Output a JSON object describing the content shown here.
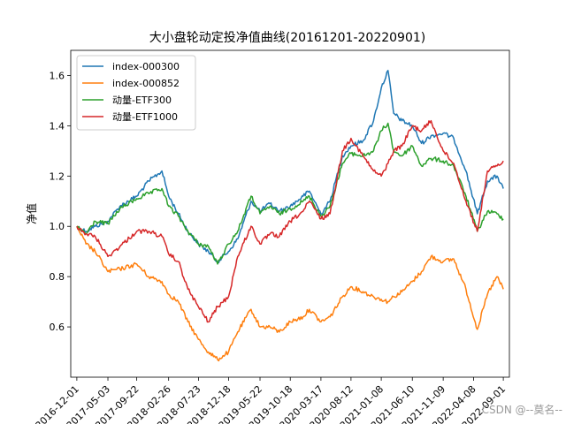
{
  "chart_data": {
    "type": "line",
    "title": "大小盘轮动定投净值曲线(20161201-20220901)",
    "xlabel": "",
    "ylabel": "净值",
    "xlim": [
      "2016-11-01",
      "2022-10-01"
    ],
    "ylim": [
      0.4,
      1.7
    ],
    "yticks": [
      0.6,
      0.8,
      1.0,
      1.2,
      1.4,
      1.6
    ],
    "ytick_labels": [
      "0.6",
      "0.8",
      "1.0",
      "1.2",
      "1.4",
      "1.6"
    ],
    "xticks": [
      "2016-12-01",
      "2017-05-03",
      "2017-09-22",
      "2018-02-26",
      "2018-07-23",
      "2018-12-18",
      "2019-05-22",
      "2019-10-18",
      "2020-03-17",
      "2020-08-12",
      "2021-01-08",
      "2021-06-10",
      "2021-11-09",
      "2022-04-08",
      "2022-09-01"
    ],
    "xtick_labels": [
      "2016-12-01",
      "2017-05-03",
      "2017-09-22",
      "2018-02-26",
      "2018-07-23",
      "2018-12-18",
      "2019-05-22",
      "2019-10-18",
      "2020-03-17",
      "2020-08-12",
      "2021-01-08",
      "2021-06-10",
      "2021-11-09",
      "2022-04-08",
      "2022-09-01"
    ],
    "grid": false,
    "legend_position": "top-left",
    "series": [
      {
        "name": "index-000300",
        "color": "#1f77b4",
        "x": [
          "2016-12-01",
          "2017-01-15",
          "2017-03-01",
          "2017-05-03",
          "2017-07-01",
          "2017-09-22",
          "2017-11-20",
          "2018-01-24",
          "2018-02-26",
          "2018-04-15",
          "2018-06-01",
          "2018-07-23",
          "2018-09-10",
          "2018-10-25",
          "2018-12-18",
          "2019-02-01",
          "2019-04-08",
          "2019-05-22",
          "2019-07-10",
          "2019-08-25",
          "2019-10-18",
          "2019-12-20",
          "2020-01-20",
          "2020-03-17",
          "2020-05-01",
          "2020-07-01",
          "2020-08-12",
          "2020-10-10",
          "2020-12-01",
          "2021-01-08",
          "2021-02-10",
          "2021-03-10",
          "2021-04-20",
          "2021-06-10",
          "2021-07-25",
          "2021-09-10",
          "2021-11-09",
          "2021-12-31",
          "2022-03-01",
          "2022-04-26",
          "2022-06-15",
          "2022-08-01",
          "2022-09-01"
        ],
        "values": [
          1.0,
          0.98,
          1.0,
          1.02,
          1.08,
          1.12,
          1.18,
          1.22,
          1.12,
          1.05,
          0.98,
          0.93,
          0.9,
          0.86,
          0.9,
          0.95,
          1.1,
          1.06,
          1.09,
          1.06,
          1.08,
          1.12,
          1.14,
          1.05,
          1.1,
          1.28,
          1.32,
          1.34,
          1.42,
          1.55,
          1.62,
          1.45,
          1.42,
          1.4,
          1.33,
          1.36,
          1.37,
          1.35,
          1.22,
          1.05,
          1.18,
          1.2,
          1.15
        ]
      },
      {
        "name": "index-000852",
        "color": "#ff7f0e",
        "x": [
          "2016-12-01",
          "2017-01-15",
          "2017-03-01",
          "2017-05-03",
          "2017-07-01",
          "2017-09-22",
          "2017-11-20",
          "2018-01-24",
          "2018-02-26",
          "2018-04-15",
          "2018-06-01",
          "2018-07-23",
          "2018-09-10",
          "2018-10-25",
          "2018-12-18",
          "2019-02-01",
          "2019-04-08",
          "2019-05-22",
          "2019-07-10",
          "2019-08-25",
          "2019-10-18",
          "2019-12-20",
          "2020-01-20",
          "2020-03-17",
          "2020-05-01",
          "2020-07-01",
          "2020-08-12",
          "2020-10-10",
          "2020-12-01",
          "2021-01-08",
          "2021-02-10",
          "2021-03-10",
          "2021-04-20",
          "2021-06-10",
          "2021-07-25",
          "2021-09-10",
          "2021-11-09",
          "2021-12-31",
          "2022-03-01",
          "2022-04-26",
          "2022-06-15",
          "2022-08-01",
          "2022-09-01"
        ],
        "values": [
          1.0,
          0.93,
          0.9,
          0.82,
          0.83,
          0.85,
          0.8,
          0.78,
          0.73,
          0.7,
          0.62,
          0.55,
          0.5,
          0.47,
          0.5,
          0.58,
          0.67,
          0.6,
          0.6,
          0.58,
          0.62,
          0.64,
          0.67,
          0.62,
          0.64,
          0.72,
          0.76,
          0.74,
          0.72,
          0.71,
          0.7,
          0.72,
          0.74,
          0.78,
          0.82,
          0.88,
          0.86,
          0.87,
          0.75,
          0.59,
          0.73,
          0.8,
          0.75
        ]
      },
      {
        "name": "动量-ETF300",
        "color": "#2ca02c",
        "x": [
          "2016-12-01",
          "2017-01-15",
          "2017-03-01",
          "2017-05-03",
          "2017-07-01",
          "2017-09-22",
          "2017-11-20",
          "2018-01-24",
          "2018-02-26",
          "2018-04-15",
          "2018-06-01",
          "2018-07-23",
          "2018-09-10",
          "2018-10-25",
          "2018-12-18",
          "2019-02-01",
          "2019-04-08",
          "2019-05-22",
          "2019-07-10",
          "2019-08-25",
          "2019-10-18",
          "2019-12-20",
          "2020-01-20",
          "2020-03-17",
          "2020-05-01",
          "2020-07-01",
          "2020-08-12",
          "2020-10-10",
          "2020-12-01",
          "2021-01-08",
          "2021-02-10",
          "2021-03-10",
          "2021-04-20",
          "2021-06-10",
          "2021-07-25",
          "2021-09-10",
          "2021-11-09",
          "2021-12-31",
          "2022-03-01",
          "2022-04-26",
          "2022-06-15",
          "2022-08-01",
          "2022-09-01"
        ],
        "values": [
          1.0,
          0.97,
          1.02,
          1.01,
          1.07,
          1.11,
          1.13,
          1.15,
          1.08,
          1.04,
          0.98,
          0.93,
          0.92,
          0.85,
          0.93,
          0.98,
          1.12,
          1.05,
          1.08,
          1.05,
          1.07,
          1.1,
          1.12,
          1.04,
          1.08,
          1.25,
          1.29,
          1.28,
          1.3,
          1.38,
          1.41,
          1.3,
          1.28,
          1.32,
          1.24,
          1.27,
          1.26,
          1.24,
          1.12,
          0.98,
          1.06,
          1.05,
          1.03
        ]
      },
      {
        "name": "动量-ETF1000",
        "color": "#d62728",
        "x": [
          "2016-12-01",
          "2017-01-15",
          "2017-03-01",
          "2017-05-03",
          "2017-07-01",
          "2017-09-22",
          "2017-11-20",
          "2018-01-24",
          "2018-02-26",
          "2018-04-15",
          "2018-06-01",
          "2018-07-23",
          "2018-09-10",
          "2018-10-25",
          "2018-12-18",
          "2019-02-01",
          "2019-04-08",
          "2019-05-22",
          "2019-07-10",
          "2019-08-25",
          "2019-10-18",
          "2019-12-20",
          "2020-01-20",
          "2020-03-17",
          "2020-05-01",
          "2020-07-01",
          "2020-08-12",
          "2020-10-10",
          "2020-12-01",
          "2021-01-08",
          "2021-02-10",
          "2021-03-10",
          "2021-04-20",
          "2021-06-10",
          "2021-07-25",
          "2021-09-10",
          "2021-11-09",
          "2021-12-31",
          "2022-03-01",
          "2022-04-26",
          "2022-06-15",
          "2022-08-01",
          "2022-09-01"
        ],
        "values": [
          1.0,
          0.97,
          0.96,
          0.88,
          0.92,
          0.98,
          0.98,
          0.96,
          0.89,
          0.86,
          0.75,
          0.68,
          0.62,
          0.68,
          0.72,
          0.88,
          1.0,
          0.93,
          0.97,
          0.96,
          1.02,
          1.06,
          1.1,
          1.03,
          1.05,
          1.3,
          1.35,
          1.28,
          1.22,
          1.2,
          1.25,
          1.3,
          1.32,
          1.4,
          1.38,
          1.42,
          1.3,
          1.25,
          1.1,
          0.98,
          1.22,
          1.24,
          1.26
        ]
      }
    ]
  },
  "watermark": "CSDN @--莫名--"
}
